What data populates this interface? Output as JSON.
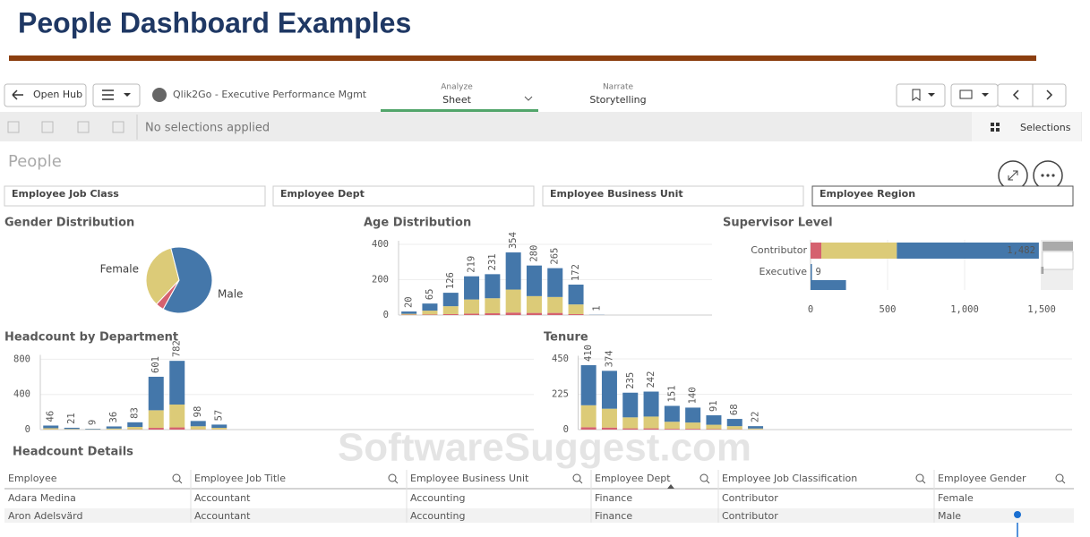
{
  "header": {
    "title": "People Dashboard Examples"
  },
  "toolbar": {
    "open_hub": "Open Hub",
    "app_name": "Qlik2Go - Executive Performance Mgmt",
    "analyze": {
      "label": "Analyze",
      "value": "Sheet"
    },
    "narrate": {
      "label": "Narrate",
      "value": "Storytelling"
    }
  },
  "selections": {
    "status": "No selections applied",
    "button": "Selections"
  },
  "sheet": {
    "title": "People",
    "filters": [
      "Employee Job Class",
      "Employee Dept",
      "Employee Business Unit",
      "Employee Region"
    ]
  },
  "chart_data": [
    {
      "type": "pie",
      "title": "Gender Distribution",
      "categories": [
        "Female",
        "Male",
        null
      ],
      "values": [
        34,
        62,
        4
      ],
      "colors": [
        "#dccb78",
        "#4477aa",
        "#d5616f"
      ]
    },
    {
      "type": "bar",
      "title": "Age Distribution",
      "stacked": true,
      "ylim": [
        0,
        420
      ],
      "yticks": [
        0,
        200,
        400
      ],
      "series": [
        {
          "color": "#d5616f",
          "values": [
            2,
            3,
            5,
            8,
            10,
            14,
            12,
            12,
            5,
            0
          ]
        },
        {
          "color": "#dccb78",
          "values": [
            5,
            22,
            45,
            80,
            85,
            130,
            95,
            90,
            55,
            0
          ]
        },
        {
          "color": "#4477aa",
          "values": [
            13,
            40,
            76,
            131,
            136,
            210,
            173,
            163,
            112,
            1
          ]
        }
      ],
      "totals": [
        20,
        65,
        126,
        219,
        231,
        354,
        280,
        265,
        172,
        1
      ]
    },
    {
      "type": "hbar",
      "title": "Supervisor Level",
      "stacked": true,
      "categories": [
        "Contributor",
        "Executive",
        null
      ],
      "xlim": [
        0,
        1500
      ],
      "xticks": [
        0,
        500,
        {
          "value": 1000,
          "label": "1,000"
        },
        {
          "value": 1500,
          "label": "1,500"
        }
      ],
      "series": [
        {
          "color": "#d5616f",
          "values": [
            70,
            0,
            0
          ]
        },
        {
          "color": "#dccb78",
          "values": [
            490,
            0,
            0
          ]
        },
        {
          "color": "#4477aa",
          "values": [
            922,
            9,
            230
          ]
        }
      ],
      "totals": [
        1482,
        9,
        null
      ],
      "total_labels": [
        "1,482",
        "9",
        null
      ]
    },
    {
      "type": "bar",
      "title": "Headcount by Department",
      "stacked": true,
      "ylim": [
        0,
        850
      ],
      "yticks": [
        0,
        400,
        800
      ],
      "series": [
        {
          "color": "#d5616f",
          "values": [
            2,
            1,
            0,
            1,
            3,
            20,
            25,
            3,
            2
          ]
        },
        {
          "color": "#dccb78",
          "values": [
            14,
            6,
            3,
            11,
            27,
            200,
            260,
            35,
            18
          ]
        },
        {
          "color": "#4477aa",
          "values": [
            30,
            14,
            6,
            24,
            53,
            381,
            497,
            60,
            37
          ]
        }
      ],
      "totals": [
        46,
        21,
        9,
        36,
        83,
        601,
        782,
        98,
        57
      ]
    },
    {
      "type": "bar",
      "title": "Tenure",
      "stacked": true,
      "ylim": [
        0,
        470
      ],
      "yticks": [
        0,
        225,
        450
      ],
      "series": [
        {
          "color": "#d5616f",
          "values": [
            15,
            13,
            8,
            8,
            5,
            5,
            3,
            2,
            1
          ]
        },
        {
          "color": "#dccb78",
          "values": [
            140,
            120,
            70,
            75,
            45,
            40,
            28,
            20,
            6
          ]
        },
        {
          "color": "#4477aa",
          "values": [
            255,
            241,
            157,
            159,
            101,
            95,
            60,
            46,
            15
          ]
        }
      ],
      "totals": [
        410,
        374,
        235,
        242,
        151,
        140,
        91,
        68,
        22
      ]
    }
  ],
  "table": {
    "title": "Headcount Details",
    "columns": [
      "Employee",
      "Employee Job Title",
      "Employee Business Unit",
      "Employee Dept",
      "Employee Job Classification",
      "Employee Gender"
    ],
    "rows": [
      [
        "Adara Medina",
        "Accountant",
        "Accounting",
        "Finance",
        "Contributor",
        "Female"
      ],
      [
        "Aron Adelsvärd",
        "Accountant",
        "Accounting",
        "Finance",
        "Contributor",
        "Male"
      ]
    ]
  },
  "watermark": "SoftwareSuggest.com"
}
